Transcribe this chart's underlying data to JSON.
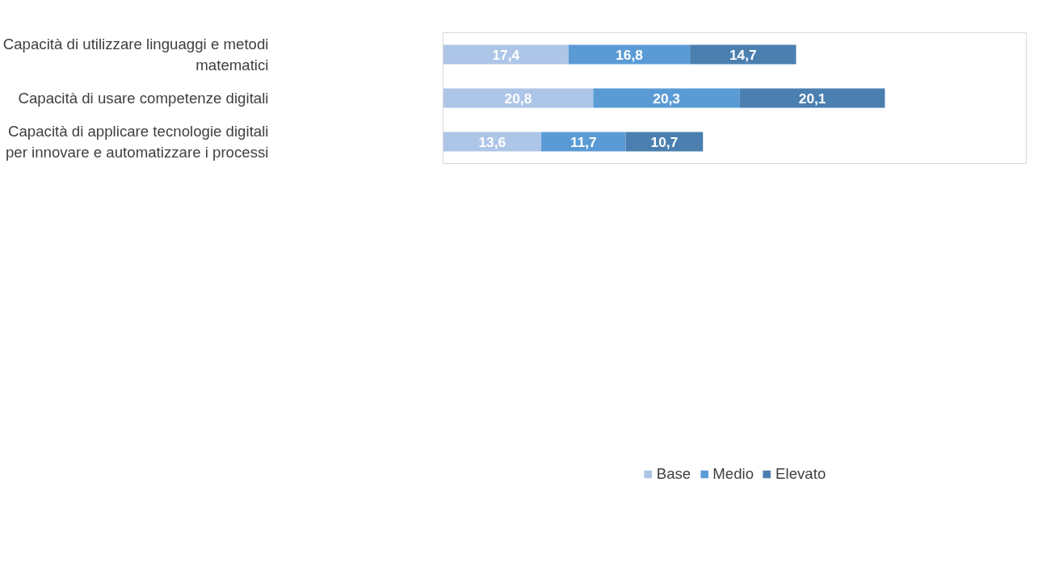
{
  "chart_data": {
    "type": "bar",
    "orientation": "horizontal",
    "stacked": true,
    "categories": [
      "Capacità di utilizzare linguaggi e metodi matematici",
      "Capacità di usare competenze digitali",
      "Capacità di applicare tecnologie digitali per innovare e automatizzare i processi"
    ],
    "series": [
      {
        "name": "Base",
        "color": "#adc5e7",
        "values": [
          17.4,
          20.8,
          13.6
        ],
        "value_labels": [
          "17,4",
          "20,8",
          "13,6"
        ]
      },
      {
        "name": "Medio",
        "color": "#5b9bd5",
        "values": [
          16.8,
          20.3,
          11.7
        ],
        "value_labels": [
          "16,8",
          "20,3",
          "11,7"
        ]
      },
      {
        "name": "Elevato",
        "color": "#4a7fb0",
        "values": [
          14.7,
          20.1,
          10.7
        ],
        "value_labels": [
          "14,7",
          "20,1",
          "10,7"
        ]
      }
    ],
    "legend": "bottom",
    "grid": false
  }
}
